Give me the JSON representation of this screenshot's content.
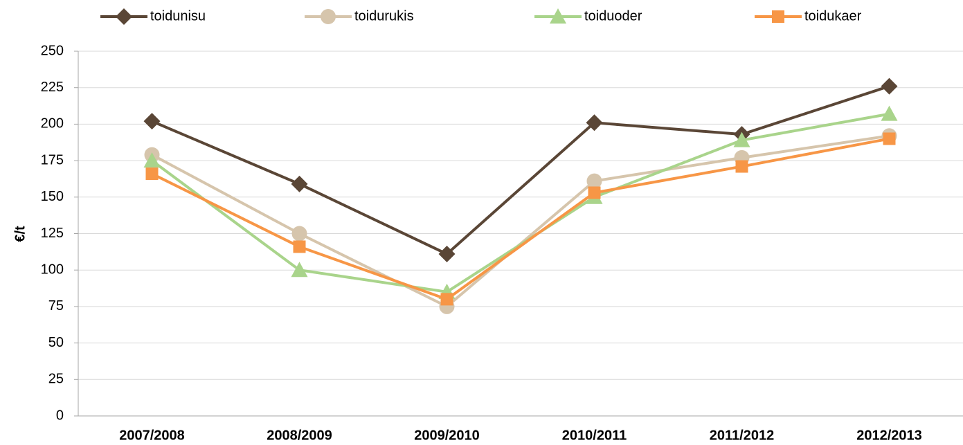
{
  "chart_data": {
    "type": "line",
    "y_label": "€/t",
    "categories": [
      "2007/2008",
      "2008/2009",
      "2009/2010",
      "2010/2011",
      "2011/2012",
      "2012/2013"
    ],
    "series": [
      {
        "name": "toidunisu",
        "color": "#5a4636",
        "marker": "diamond",
        "values": [
          202,
          159,
          111,
          201,
          193,
          226
        ]
      },
      {
        "name": "toidurukis",
        "color": "#d6c5ac",
        "marker": "circle",
        "values": [
          179,
          125,
          75,
          161,
          177,
          192
        ]
      },
      {
        "name": "toiduoder",
        "color": "#a9d48b",
        "marker": "triangle",
        "values": [
          175,
          100,
          85,
          150,
          189,
          207
        ]
      },
      {
        "name": "toidukaer",
        "color": "#f79646",
        "marker": "square",
        "values": [
          166,
          116,
          80,
          153,
          171,
          190
        ]
      }
    ],
    "ylim": [
      0,
      250
    ],
    "yticks": [
      0,
      25,
      50,
      75,
      100,
      125,
      150,
      175,
      200,
      225,
      250
    ],
    "grid": true,
    "legend_position": "top"
  }
}
